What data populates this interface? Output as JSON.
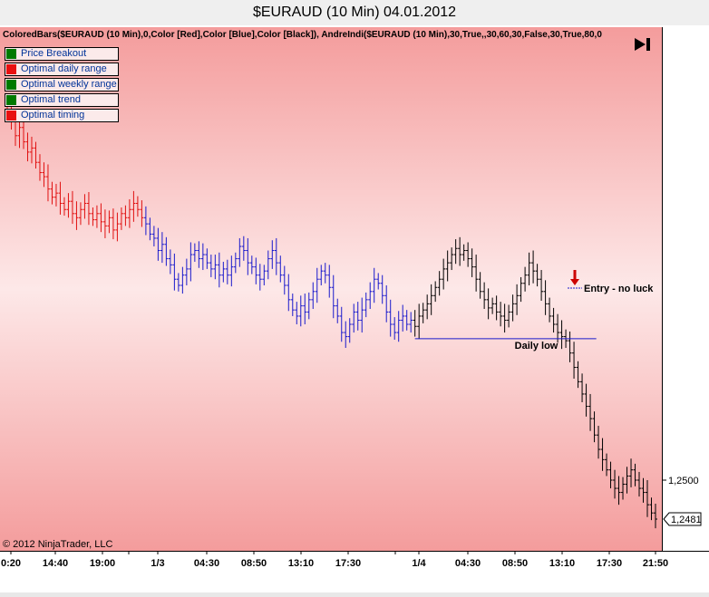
{
  "window": {
    "title": "$EURAUD (10 Min)  04.01.2012"
  },
  "indicator_line": "ColoredBars($EURAUD (10 Min),0,Color [Red],Color [Blue],Color [Black]), AndreIndi($EURAUD (10 Min),30,True,,30,60,30,False,30,True,80,0",
  "legend": [
    {
      "label": "Price Breakout",
      "color": "#007a00"
    },
    {
      "label": "Optimal daily range",
      "color": "#e81010"
    },
    {
      "label": "Optimal weekly range",
      "color": "#007a00"
    },
    {
      "label": "Optimal trend",
      "color": "#007a00"
    },
    {
      "label": "Optimal timing",
      "color": "#e81010"
    }
  ],
  "copyright": "© 2012 NinjaTrader, LLC",
  "colors": {
    "bg_top": "#f49c9c",
    "bg_mid": "#fde8e8",
    "bar_red": "#e01010",
    "bar_blue": "#1a1acc",
    "bar_black": "#000000",
    "entry_arrow": "#cc0000"
  },
  "icons": {
    "nav": "skip-to-end-icon"
  },
  "chart_data": {
    "type": "ohlc",
    "price_axis": {
      "ticks": [
        "1,2500"
      ],
      "current_price_label": "1,2481"
    },
    "time_axis": {
      "ticks": [
        "0:20",
        "14:40",
        "19:00",
        "1/3",
        "04:30",
        "08:50",
        "13:10",
        "17:30",
        "1/4",
        "04:30",
        "08:50",
        "13:10",
        "17:30",
        "21:50"
      ]
    },
    "annotations": [
      {
        "type": "horizontal_line",
        "label": "Daily low"
      },
      {
        "type": "down_arrow",
        "label": "Entry - no luck"
      }
    ],
    "segments": [
      {
        "color_key": "bar_red",
        "closes": [
          1.268,
          1.2675,
          1.2668,
          1.2672,
          1.2665,
          1.266,
          1.2662,
          1.2655,
          1.265,
          1.2648,
          1.2642,
          1.2638,
          1.264,
          1.2635,
          1.2632,
          1.2636,
          1.263,
          1.2628,
          1.2632,
          1.2635,
          1.263,
          1.2627,
          1.263,
          1.2626,
          1.2624,
          1.2628,
          1.2622,
          1.2625,
          1.263,
          1.2628,
          1.2632,
          1.2635,
          1.2632,
          1.2628
        ]
      },
      {
        "color_key": "bar_blue",
        "closes": [
          1.2625,
          1.262,
          1.2618,
          1.2612,
          1.2615,
          1.2608,
          1.2605,
          1.2598,
          1.2595,
          1.26,
          1.2603,
          1.261,
          1.2612,
          1.2608,
          1.261,
          1.2606,
          1.2603,
          1.2605,
          1.26,
          1.2603,
          1.26,
          1.2604,
          1.2608,
          1.2614,
          1.2612,
          1.2606,
          1.2604,
          1.26,
          1.2598,
          1.2602,
          1.2608,
          1.2612,
          1.2606,
          1.26,
          1.2595,
          1.2588,
          1.2583,
          1.258,
          1.2585,
          1.2582,
          1.2588,
          1.2592,
          1.2598,
          1.2602,
          1.26,
          1.2594,
          1.2585,
          1.258,
          1.2572,
          1.257,
          1.2576,
          1.2582,
          1.2578,
          1.2583,
          1.2588,
          1.2592,
          1.2598,
          1.2596,
          1.259,
          1.2582,
          1.2576,
          1.2572,
          1.2578,
          1.258,
          1.2576,
          1.2578
        ]
      },
      {
        "color_key": "bar_black",
        "closes": [
          1.2575,
          1.258,
          1.2583,
          1.2586,
          1.259,
          1.2594,
          1.2598,
          1.2603,
          1.2606,
          1.261,
          1.2613,
          1.261,
          1.2612,
          1.2608,
          1.2604,
          1.2598,
          1.2592,
          1.2588,
          1.2584,
          1.2586,
          1.2582,
          1.258,
          1.2578,
          1.2582,
          1.2586,
          1.259,
          1.2596,
          1.26,
          1.2606,
          1.2602,
          1.2598,
          1.2592,
          1.2586,
          1.258,
          1.2576,
          1.2572,
          1.257,
          1.2568,
          1.2562,
          1.2555,
          1.2548,
          1.2542,
          1.2536,
          1.253,
          1.2522,
          1.2515,
          1.251,
          1.2505,
          1.25,
          1.2496,
          1.2494,
          1.2498,
          1.2502,
          1.2505,
          1.25,
          1.2496,
          1.2494,
          1.2488,
          1.2484,
          1.2481
        ]
      }
    ]
  }
}
